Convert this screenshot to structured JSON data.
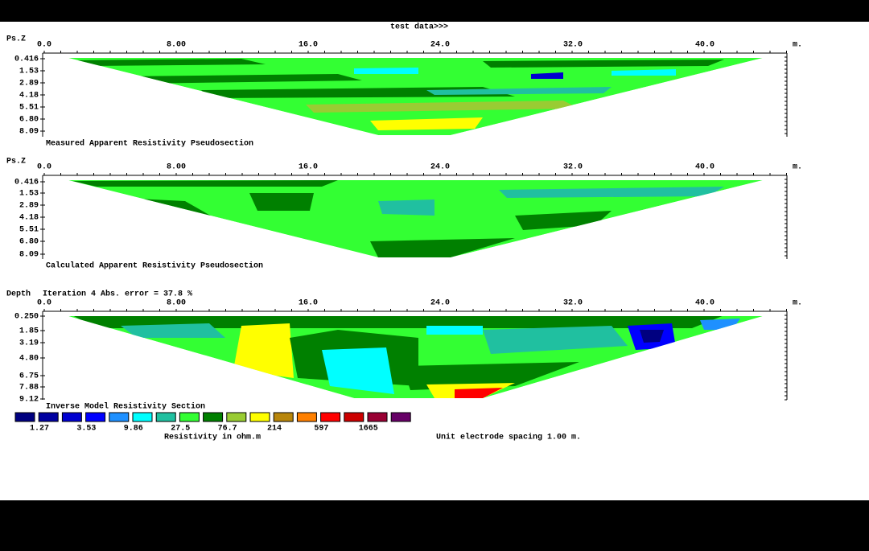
{
  "title": "test data>>>",
  "panels": [
    {
      "y_label": "Ps.Z",
      "x_ticks": [
        "0.0",
        "8.00",
        "16.0",
        "24.0",
        "32.0",
        "40.0"
      ],
      "x_unit": "m.",
      "depth_ticks": [
        "0.416",
        "1.53",
        "2.89",
        "4.18",
        "5.51",
        "6.80",
        "8.09"
      ],
      "caption": "Measured Apparent Resistivity Pseudosection"
    },
    {
      "y_label": "Ps.Z",
      "x_ticks": [
        "0.0",
        "8.00",
        "16.0",
        "24.0",
        "32.0",
        "40.0"
      ],
      "x_unit": "m.",
      "depth_ticks": [
        "0.416",
        "1.53",
        "2.89",
        "4.18",
        "5.51",
        "6.80",
        "8.09"
      ],
      "caption": "Calculated Apparent Resistivity Pseudosection"
    },
    {
      "y_label": "Depth",
      "header": "Iteration 4 Abs. error = 37.8 %",
      "x_ticks": [
        "0.0",
        "8.00",
        "16.0",
        "24.0",
        "32.0",
        "40.0"
      ],
      "x_unit": "m.",
      "depth_ticks": [
        "0.250",
        "1.85",
        "3.19",
        "4.80",
        "6.75",
        "7.88",
        "9.12"
      ],
      "caption": "Inverse Model Resistivity Section"
    }
  ],
  "legend": {
    "labels": [
      "1.27",
      "3.53",
      "9.86",
      "27.5",
      "76.7",
      "214",
      "597",
      "1665"
    ],
    "caption": "Resistivity in ohm.m",
    "note": "Unit electrode spacing 1.00 m."
  }
}
